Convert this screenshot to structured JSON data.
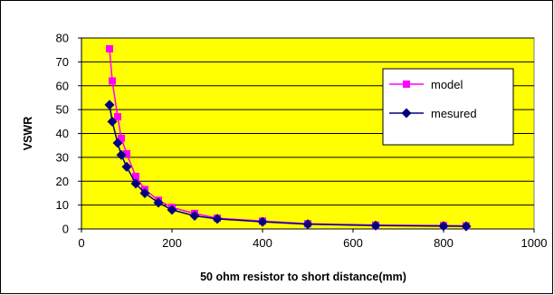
{
  "chart_data": {
    "type": "line",
    "title": "",
    "xlabel": "50 ohm resistor  to short distance(mm)",
    "ylabel": "VSWR",
    "xlim": [
      0,
      1000
    ],
    "ylim": [
      0,
      80
    ],
    "xticks": [
      0,
      200,
      400,
      600,
      800,
      1000
    ],
    "yticks": [
      0,
      10,
      20,
      30,
      40,
      50,
      60,
      70,
      80
    ],
    "grid": "horizontal",
    "legend_position": "right",
    "plot_background": "#ffff00",
    "series": [
      {
        "name": "model",
        "color": "#ff00ff",
        "marker": "square",
        "x": [
          62,
          68,
          80,
          88,
          100,
          120,
          140,
          170,
          200,
          250,
          300,
          400,
          500,
          650,
          800,
          850
        ],
        "y": [
          75.5,
          62,
          47,
          38,
          31.5,
          22,
          16.5,
          12,
          9,
          6.5,
          4.5,
          3.3,
          2.2,
          1.6,
          1.4,
          1.3
        ]
      },
      {
        "name": "mesured",
        "color": "#000080",
        "marker": "diamond",
        "x": [
          62,
          68,
          80,
          88,
          100,
          120,
          140,
          170,
          200,
          250,
          300,
          400,
          500,
          650,
          800,
          850
        ],
        "y": [
          52,
          45,
          36,
          31,
          26,
          19,
          15,
          11,
          8,
          5.5,
          4.2,
          3,
          2,
          1.4,
          1.2,
          1.1
        ]
      }
    ]
  }
}
